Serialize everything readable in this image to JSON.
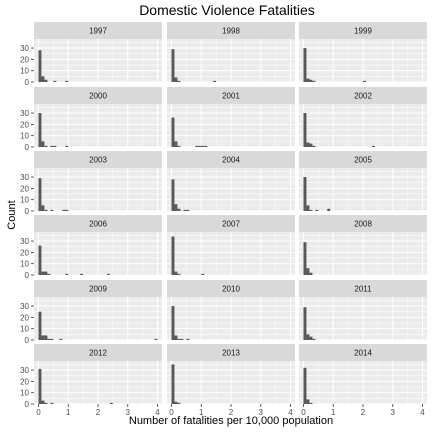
{
  "chart_data": {
    "type": "histogram",
    "title": "Domestic Violence Fatalities",
    "xlabel": "Number of fatalities per 10,000 population",
    "ylabel": "Count",
    "xlim": [
      -0.15,
      4.15
    ],
    "ylim": [
      0,
      38
    ],
    "x_ticks": [
      0,
      1,
      2,
      3,
      4
    ],
    "x_tick_labels": [
      "0",
      "1",
      "2",
      "3",
      "4"
    ],
    "y_ticks": [
      0,
      10,
      20,
      30
    ],
    "y_tick_labels": [
      "0",
      "10",
      "20",
      "30"
    ],
    "bin_width": 0.1,
    "bin_starts": [
      0,
      0.1,
      0.2,
      0.3,
      0.4,
      0.5,
      0.6,
      0.7,
      0.8,
      0.9,
      1.0,
      1.1,
      1.2,
      1.3,
      1.4,
      1.5,
      1.6,
      1.7,
      1.8,
      1.9,
      2.0,
      2.1,
      2.2,
      2.3,
      2.4,
      2.5,
      2.6,
      2.7,
      2.8,
      2.9,
      3.0,
      3.1,
      3.2,
      3.3,
      3.4,
      3.5,
      3.6,
      3.7,
      3.8,
      3.9
    ],
    "grid": true,
    "facet_columns": 3,
    "facets": [
      {
        "label": "1997",
        "counts": [
          28,
          5,
          2,
          0,
          0,
          1,
          0,
          0,
          0,
          1,
          0,
          0,
          0,
          0,
          0,
          0,
          0,
          0,
          0,
          0,
          0,
          0,
          0,
          0,
          0,
          0,
          0,
          0,
          0,
          0,
          0,
          0,
          0,
          0,
          0,
          0,
          0,
          0,
          0,
          0
        ]
      },
      {
        "label": "1998",
        "counts": [
          29,
          4,
          1,
          0,
          0,
          0,
          0,
          0,
          0,
          0,
          0,
          0,
          0,
          0,
          1,
          0,
          0,
          0,
          0,
          0,
          0,
          0,
          0,
          0,
          0,
          0,
          0,
          0,
          0,
          0,
          0,
          0,
          0,
          0,
          0,
          0,
          0,
          0,
          0,
          0
        ]
      },
      {
        "label": "1999",
        "counts": [
          30,
          3,
          2,
          1,
          0,
          0,
          0,
          0,
          0,
          0,
          0,
          0,
          0,
          0,
          0,
          0,
          0,
          0,
          0,
          0,
          1,
          0,
          0,
          0,
          0,
          0,
          0,
          0,
          0,
          0,
          0,
          0,
          0,
          0,
          0,
          0,
          0,
          0,
          0,
          0
        ]
      },
      {
        "label": "2000",
        "counts": [
          30,
          5,
          1,
          0,
          1,
          1,
          0,
          0,
          0,
          1,
          0,
          0,
          0,
          0,
          0,
          0,
          0,
          0,
          0,
          0,
          0,
          0,
          0,
          0,
          0,
          0,
          0,
          0,
          0,
          0,
          0,
          0,
          0,
          0,
          0,
          0,
          0,
          0,
          0,
          0
        ]
      },
      {
        "label": "2001",
        "counts": [
          26,
          5,
          1,
          0,
          0,
          0,
          0,
          0,
          1,
          1,
          1,
          1,
          0,
          0,
          0,
          0,
          0,
          0,
          0,
          0,
          0,
          0,
          0,
          0,
          0,
          0,
          0,
          0,
          0,
          0,
          0,
          0,
          0,
          0,
          0,
          0,
          0,
          0,
          0,
          0
        ]
      },
      {
        "label": "2002",
        "counts": [
          30,
          4,
          3,
          1,
          0,
          0,
          0,
          0,
          0,
          0,
          0,
          0,
          0,
          0,
          0,
          0,
          0,
          0,
          0,
          0,
          0,
          0,
          0,
          1,
          0,
          0,
          0,
          0,
          0,
          0,
          0,
          0,
          0,
          0,
          0,
          0,
          0,
          0,
          0,
          0
        ]
      },
      {
        "label": "2003",
        "counts": [
          29,
          5,
          1,
          0,
          1,
          0,
          0,
          0,
          1,
          1,
          0,
          0,
          0,
          0,
          0,
          0,
          0,
          0,
          0,
          0,
          0,
          0,
          0,
          0,
          0,
          0,
          0,
          0,
          0,
          0,
          0,
          0,
          0,
          0,
          0,
          0,
          0,
          0,
          0,
          0
        ]
      },
      {
        "label": "2004",
        "counts": [
          28,
          6,
          2,
          0,
          1,
          1,
          0,
          0,
          0,
          0,
          0,
          0,
          0,
          0,
          0,
          0,
          0,
          0,
          0,
          0,
          0,
          0,
          0,
          0,
          0,
          0,
          0,
          0,
          0,
          0,
          0,
          0,
          0,
          0,
          0,
          0,
          0,
          0,
          0,
          0
        ]
      },
      {
        "label": "2005",
        "counts": [
          30,
          5,
          1,
          0,
          1,
          0,
          0,
          0,
          2,
          0,
          0,
          0,
          0,
          0,
          0,
          0,
          0,
          0,
          0,
          0,
          0,
          0,
          0,
          0,
          0,
          0,
          0,
          0,
          0,
          0,
          0,
          0,
          0,
          0,
          0,
          0,
          0,
          0,
          0,
          0
        ]
      },
      {
        "label": "2006",
        "counts": [
          26,
          3,
          3,
          1,
          0,
          0,
          0,
          0,
          0,
          1,
          0,
          0,
          0,
          0,
          1,
          0,
          0,
          0,
          0,
          0,
          0,
          0,
          0,
          1,
          0,
          0,
          0,
          0,
          0,
          0,
          0,
          0,
          0,
          0,
          0,
          0,
          0,
          0,
          0,
          0
        ]
      },
      {
        "label": "2007",
        "counts": [
          34,
          3,
          1,
          0,
          0,
          0,
          0,
          0,
          0,
          0,
          1,
          0,
          0,
          0,
          0,
          0,
          0,
          0,
          0,
          0,
          0,
          0,
          0,
          0,
          0,
          0,
          0,
          0,
          0,
          0,
          0,
          0,
          0,
          0,
          0,
          0,
          0,
          0,
          0,
          0
        ]
      },
      {
        "label": "2008",
        "counts": [
          29,
          6,
          2,
          0,
          0,
          0,
          0,
          0,
          0,
          0,
          0,
          0,
          0,
          0,
          0,
          0,
          0,
          0,
          0,
          0,
          0,
          0,
          0,
          0,
          0,
          0,
          0,
          0,
          0,
          0,
          0,
          0,
          0,
          0,
          0,
          0,
          0,
          0,
          0,
          0
        ]
      },
      {
        "label": "2009",
        "counts": [
          25,
          4,
          4,
          1,
          1,
          0,
          0,
          1,
          0,
          0,
          0,
          0,
          0,
          0,
          0,
          0,
          0,
          0,
          0,
          0,
          0,
          0,
          0,
          0,
          0,
          0,
          0,
          0,
          0,
          0,
          0,
          0,
          0,
          0,
          0,
          0,
          0,
          0,
          0,
          1
        ]
      },
      {
        "label": "2010",
        "counts": [
          30,
          4,
          1,
          1,
          0,
          1,
          0,
          0,
          0,
          0,
          0,
          0,
          0,
          0,
          0,
          0,
          0,
          0,
          0,
          0,
          0,
          0,
          0,
          0,
          0,
          0,
          0,
          0,
          0,
          0,
          0,
          0,
          0,
          0,
          0,
          0,
          0,
          0,
          0,
          0
        ]
      },
      {
        "label": "2011",
        "counts": [
          29,
          5,
          3,
          1,
          0,
          0,
          0,
          0,
          0,
          0,
          0,
          0,
          0,
          0,
          0,
          0,
          0,
          0,
          0,
          0,
          0,
          0,
          0,
          0,
          0,
          0,
          0,
          0,
          0,
          0,
          0,
          0,
          0,
          0,
          0,
          0,
          0,
          0,
          0,
          0
        ]
      },
      {
        "label": "2012",
        "counts": [
          31,
          3,
          1,
          0,
          1,
          0,
          0,
          0,
          0,
          0,
          0,
          0,
          0,
          0,
          0,
          0,
          0,
          0,
          0,
          0,
          0,
          0,
          0,
          0,
          1,
          0,
          0,
          0,
          0,
          0,
          0,
          0,
          0,
          0,
          0,
          0,
          0,
          0,
          0,
          0
        ]
      },
      {
        "label": "2013",
        "counts": [
          35,
          2,
          1,
          0,
          0,
          0,
          0,
          0,
          0,
          0,
          0,
          0,
          0,
          0,
          0,
          0,
          0,
          0,
          0,
          0,
          0,
          0,
          0,
          0,
          0,
          0,
          0,
          0,
          0,
          0,
          0,
          0,
          0,
          0,
          0,
          0,
          0,
          0,
          0,
          0
        ]
      },
      {
        "label": "2014",
        "counts": [
          32,
          4,
          1,
          0,
          0,
          0,
          0,
          0,
          0,
          0,
          0,
          0,
          0,
          0,
          0,
          0,
          0,
          0,
          0,
          0,
          0,
          0,
          0,
          0,
          0,
          0,
          0,
          0,
          0,
          0,
          0,
          0,
          0,
          0,
          0,
          0,
          0,
          0,
          0,
          0
        ]
      }
    ]
  },
  "colors": {
    "panel_background": "#ebebeb",
    "strip_background": "#d9d9d9",
    "grid_line": "#ffffff",
    "bar_fill": "#595959",
    "tick_mark": "#333333"
  }
}
